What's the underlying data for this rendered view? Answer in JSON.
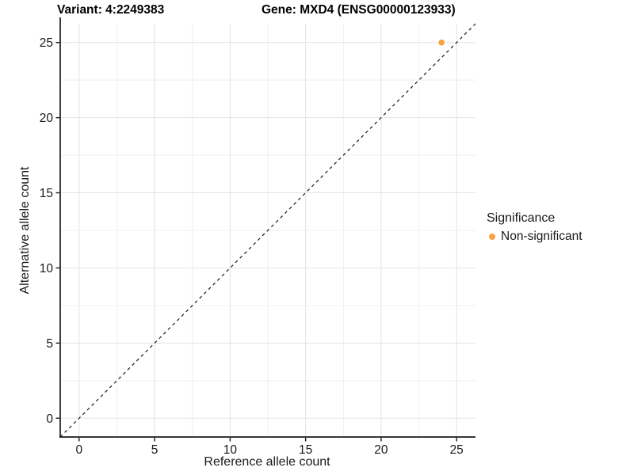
{
  "chart_data": {
    "type": "scatter",
    "titles": {
      "variant": "Variant: 4:2249383",
      "gene": "Gene: MXD4 (ENSG00000123933)"
    },
    "xlabel": "Reference allele count",
    "ylabel": "Alternative allele count",
    "xlim": [
      -1.25,
      26.25
    ],
    "ylim": [
      -1.25,
      26.25
    ],
    "x_ticks": [
      0,
      5,
      10,
      15,
      20,
      25
    ],
    "y_ticks": [
      0,
      5,
      10,
      15,
      20,
      25
    ],
    "x_minor_ticks": [
      2.5,
      7.5,
      12.5,
      17.5,
      22.5
    ],
    "y_minor_ticks": [
      2.5,
      7.5,
      12.5,
      17.5,
      22.5
    ],
    "grid": true,
    "identity_line": {
      "slope": 1,
      "intercept": 0,
      "style": "dashed",
      "color": "#1a1a1a"
    },
    "series": [
      {
        "name": "Non-significant",
        "color": "#F9A242",
        "points": [
          {
            "x": 24,
            "y": 25
          }
        ]
      }
    ],
    "legend": {
      "title": "Significance",
      "position": "right",
      "items": [
        {
          "label": "Non-significant",
          "color": "#F9A242",
          "marker": "circle"
        }
      ]
    },
    "colors": {
      "background": "#FFFFFF",
      "grid_major": "#E3E3E3",
      "grid_minor": "#EFEFEF",
      "axis_line": "#1A1A1A",
      "tick_text": "#1A1A1A",
      "title_text": "#000000"
    }
  }
}
